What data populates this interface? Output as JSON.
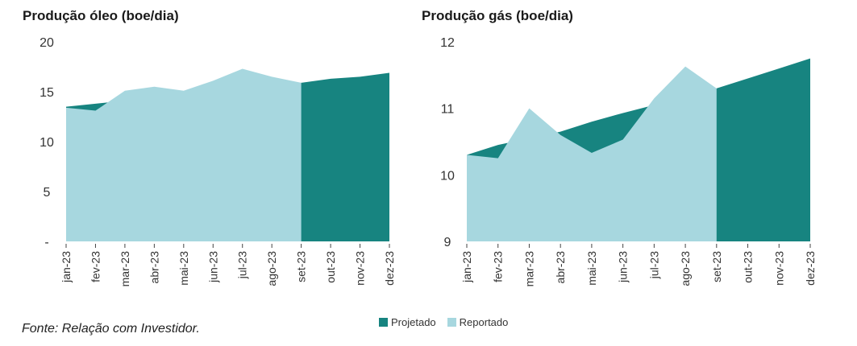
{
  "source_note": "Fonte: Relação com Investidor.",
  "legend": [
    {
      "label": "Projetado",
      "color": "#178480"
    },
    {
      "label": "Reportado",
      "color": "#a7d7df"
    }
  ],
  "chart_data": [
    {
      "type": "area",
      "title": "Produção óleo (boe/dia)",
      "categories": [
        "jan-23",
        "fev-23",
        "mar-23",
        "abr-23",
        "mai-23",
        "jun-23",
        "jul-23",
        "ago-23",
        "set-23",
        "out-23",
        "nov-23",
        "dez-23"
      ],
      "yticks": [
        "-",
        "5",
        "10",
        "15",
        "20"
      ],
      "ylim": [
        0,
        20
      ],
      "series": [
        {
          "name": "Projetado",
          "values": [
            13.5,
            13.8,
            14.1,
            14.3,
            14.6,
            14.9,
            15.2,
            15.5,
            15.9,
            16.3,
            16.5,
            16.9
          ]
        },
        {
          "name": "Reportado",
          "values": [
            13.4,
            13.1,
            15.1,
            15.5,
            15.1,
            16.1,
            17.3,
            16.5,
            15.9,
            null,
            null,
            null
          ]
        }
      ]
    },
    {
      "type": "area",
      "title": "Produção gás (boe/dia)",
      "categories": [
        "jan-23",
        "fev-23",
        "mar-23",
        "abr-23",
        "mai-23",
        "jun-23",
        "jul-23",
        "ago-23",
        "set-23",
        "out-23",
        "nov-23",
        "dez-23"
      ],
      "yticks": [
        "9",
        "10",
        "11",
        "12"
      ],
      "ylim": [
        9,
        12
      ],
      "series": [
        {
          "name": "Projetado",
          "values": [
            10.3,
            10.45,
            10.55,
            10.65,
            10.8,
            10.93,
            11.05,
            11.17,
            11.3,
            11.45,
            11.6,
            11.75
          ]
        },
        {
          "name": "Reportado",
          "values": [
            10.3,
            10.25,
            11.0,
            10.6,
            10.33,
            10.53,
            11.15,
            11.63,
            11.3,
            null,
            null,
            null
          ]
        }
      ]
    }
  ]
}
